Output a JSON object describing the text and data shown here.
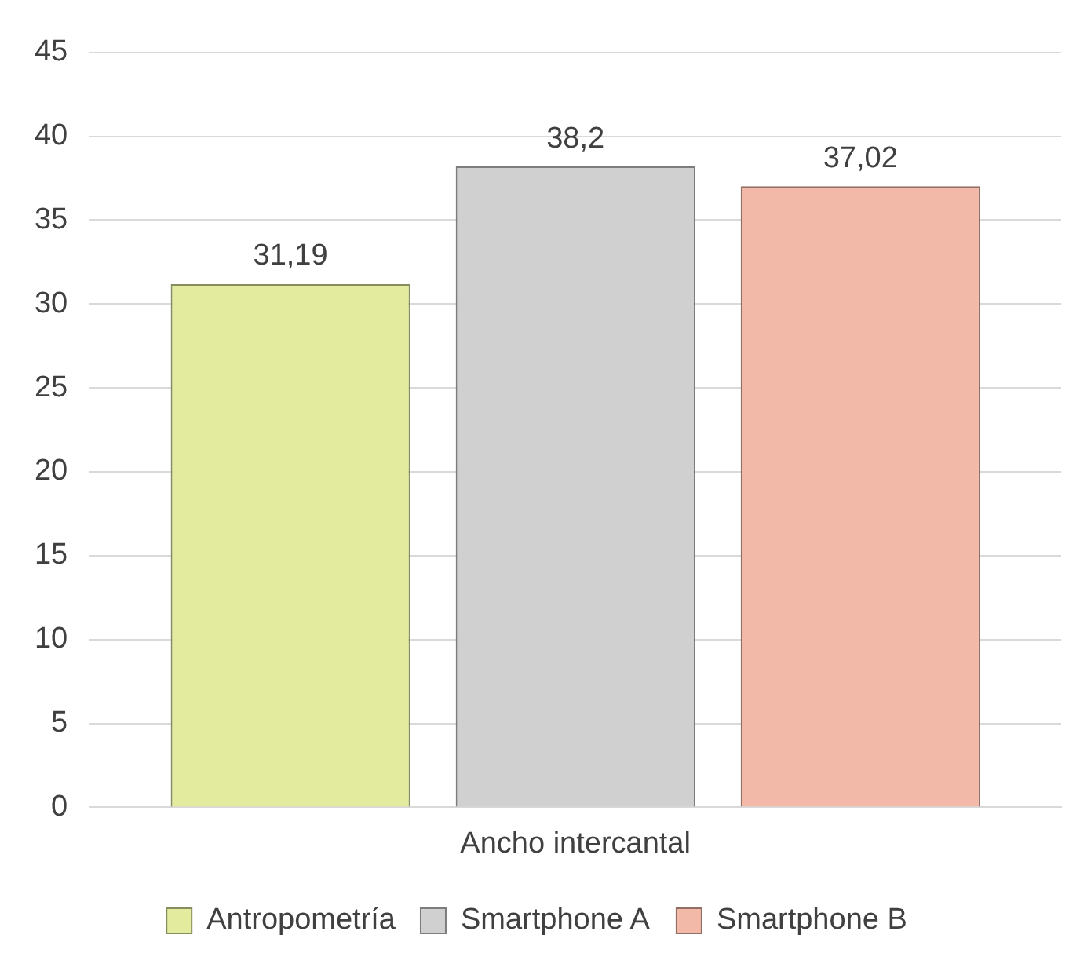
{
  "chart_data": {
    "type": "bar",
    "categories": [
      "Ancho intercantal"
    ],
    "series": [
      {
        "name": "Antropometría",
        "color": "#e2eb9e",
        "values": [
          31.19
        ],
        "value_labels": [
          "31,19"
        ]
      },
      {
        "name": "Smartphone A",
        "color": "#d0d0d0",
        "values": [
          38.2
        ],
        "value_labels": [
          "38,2"
        ]
      },
      {
        "name": "Smartphone B",
        "color": "#f2b9a9",
        "values": [
          37.02
        ],
        "value_labels": [
          "37,02"
        ]
      }
    ],
    "ylim": [
      0,
      45
    ],
    "yticks": [
      0,
      5,
      10,
      15,
      20,
      25,
      30,
      35,
      40,
      45
    ],
    "grid": "y",
    "legend": "bottom"
  }
}
